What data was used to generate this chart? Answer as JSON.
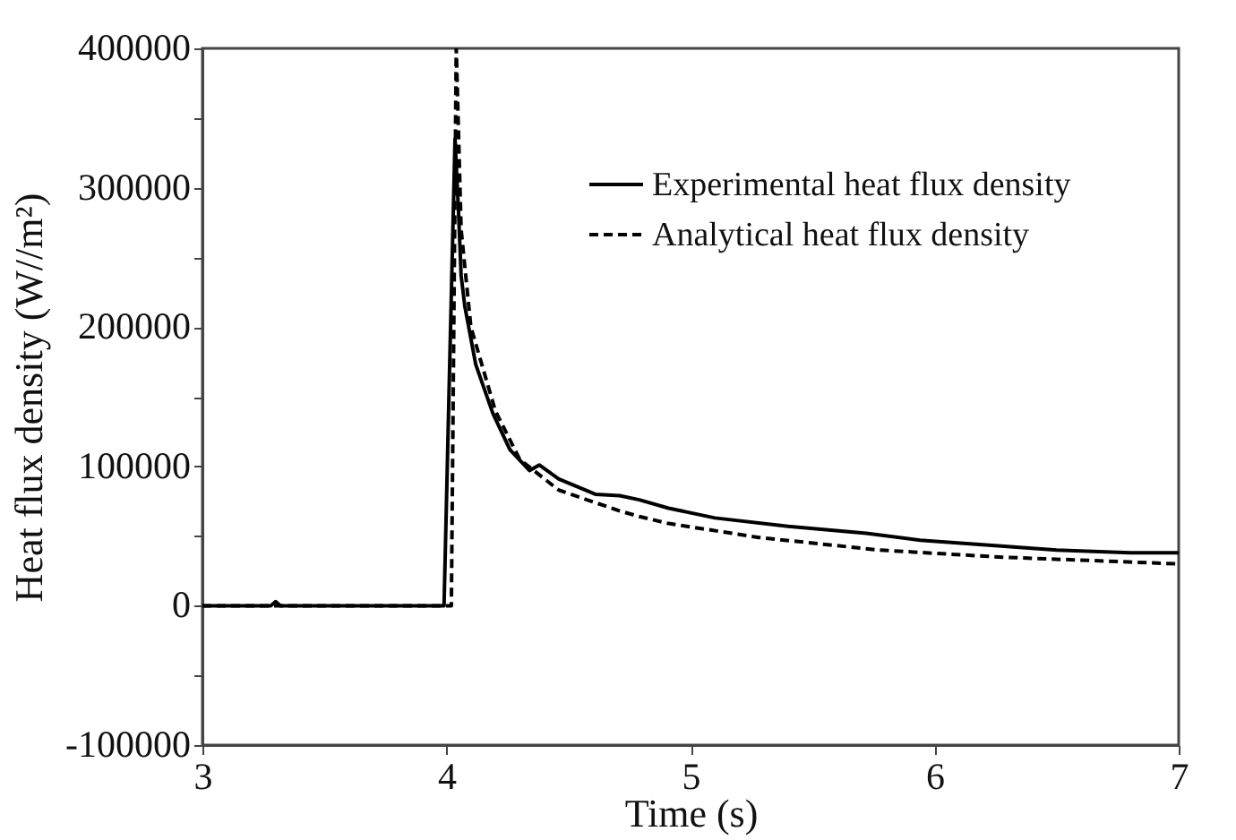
{
  "chart_data": {
    "type": "line",
    "xlabel": "Time (s)",
    "ylabel": "Heat flux density (W//m²)",
    "xlim": [
      3,
      7
    ],
    "xticks": [
      3,
      4,
      5,
      6,
      7
    ],
    "ylim": [
      -100000,
      400000
    ],
    "yticks": [
      -100000,
      {
        "value": -50000,
        "label": null
      },
      0,
      {
        "value": 50000,
        "label": null
      },
      100000,
      {
        "value": 150000,
        "label": null
      },
      200000,
      {
        "value": 250000,
        "label": null
      },
      300000,
      {
        "value": 350000,
        "label": null
      },
      400000
    ],
    "legend": "top right",
    "series": [
      {
        "name": "Experimental heat flux density",
        "color": "#000000",
        "line_style": "solid",
        "x": [
          3,
          3.28,
          3.3,
          3.32,
          3.6,
          3.97,
          3.99,
          4.01,
          4.035,
          4.05,
          4.06,
          4.075,
          4.12,
          4.19,
          4.26,
          4.34,
          4.38,
          4.46,
          4.61,
          4.71,
          4.79,
          4.91,
          5.1,
          5.4,
          5.72,
          5.94,
          6.26,
          6.5,
          6.8,
          7
        ],
        "values": [
          0,
          0,
          3000,
          0,
          0,
          0,
          0,
          150000,
          335000,
          280000,
          237000,
          215000,
          173000,
          138000,
          112000,
          97000,
          101000,
          91000,
          80000,
          79000,
          76000,
          70000,
          63000,
          57000,
          52000,
          47000,
          43000,
          40000,
          38000,
          38000
        ]
      },
      {
        "name": "Analytical heat flux density",
        "color": "#000000",
        "line_style": "dashed",
        "x": [
          3,
          3.5,
          4.0,
          4.02,
          4.04,
          4.06,
          4.1,
          4.2,
          4.3,
          4.46,
          4.71,
          4.79,
          4.91,
          5.28,
          5.77,
          6.26,
          7
        ],
        "values": [
          0,
          0,
          0,
          0,
          400000,
          270000,
          200000,
          140000,
          105000,
          83000,
          68000,
          64000,
          59000,
          49000,
          40000,
          35000,
          30000
        ]
      }
    ]
  }
}
